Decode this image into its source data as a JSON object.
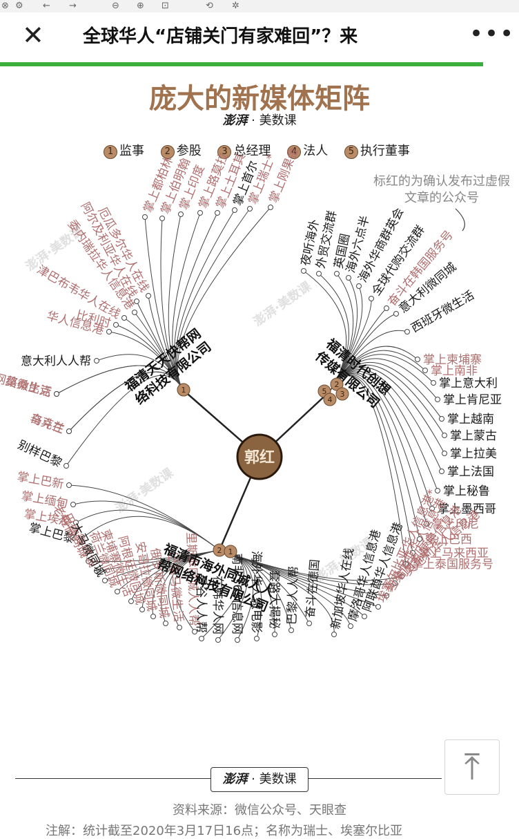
{
  "header": {
    "title": "全球华人“店铺关门有家难回”？来"
  },
  "infographic": {
    "title": "庞大的新媒体矩阵",
    "brand": "美数课",
    "brand_logo": "澎湃",
    "legend": [
      {
        "num": "1",
        "label": "监事"
      },
      {
        "num": "2",
        "label": "参股"
      },
      {
        "num": "3",
        "label": "总经理"
      },
      {
        "num": "4",
        "label": "法人"
      },
      {
        "num": "5",
        "label": "执行董事"
      }
    ],
    "note_red": "标红的为确认发布过虚假文章的公众号",
    "center": "郭红",
    "colors": {
      "red_label": "#b06f6f",
      "black_label": "#1a1a1a",
      "accent": "#b98b66",
      "title": "#a0724e"
    },
    "companies": [
      {
        "name": "福清天天快帮网络科技有限公司",
        "roles": [
          "1",
          "1"
        ]
      },
      {
        "name": "福清时代创想传媒有限公司",
        "roles": [
          "5",
          "2",
          "4",
          "3"
        ]
      },
      {
        "name": "福清市海外同城人人帮网络科技有限公司",
        "roles": [
          "2",
          "1"
        ]
      }
    ],
    "nodes": [
      {
        "text": "掌上都柏林",
        "red": true
      },
      {
        "text": "掌上伯明翰",
        "red": true
      },
      {
        "text": "掌上印度",
        "red": true
      },
      {
        "text": "掌上路莫拉",
        "red": true
      },
      {
        "text": "掌上土耳其",
        "red": true
      },
      {
        "text": "掌上首尔",
        "red": false
      },
      {
        "text": "掌上瑞士*",
        "red": true
      },
      {
        "text": "掌上刚果金",
        "red": true
      },
      {
        "text": "厄瓜多尔华人在线",
        "red": true
      },
      {
        "text": "阿尔及利亚华人在线",
        "red": true
      },
      {
        "text": "委内瑞拉华人信息港",
        "red": true
      },
      {
        "text": "津巴布韦华人在线",
        "red": true
      },
      {
        "text": "比利时",
        "red": true
      },
      {
        "text": "华人信息港",
        "red": true
      },
      {
        "text": "意大利人人帮",
        "red": false
      },
      {
        "text": "莫桑比克",
        "red": true
      },
      {
        "text": "网络微生活",
        "red": true
      },
      {
        "text": "奋斗在",
        "red": true
      },
      {
        "text": "乌克兰",
        "red": true
      },
      {
        "text": "别样巴黎",
        "red": false
      },
      {
        "text": "夜听海外",
        "red": false
      },
      {
        "text": "外贸交流群",
        "red": false
      },
      {
        "text": "英国圈",
        "red": false
      },
      {
        "text": "海外六点半",
        "red": false
      },
      {
        "text": "海外华商群英会",
        "red": false
      },
      {
        "text": "全球代购交流群",
        "red": false
      },
      {
        "text": "奋斗在韩国服务号",
        "red": true
      },
      {
        "text": "意大利微同城",
        "red": false
      },
      {
        "text": "西班牙微生活",
        "red": false
      },
      {
        "text": "掌上柬埔寨",
        "red": true
      },
      {
        "text": "掌上南非",
        "red": true
      },
      {
        "text": "掌上意大利",
        "red": false
      },
      {
        "text": "掌上肯尼亚",
        "red": false
      },
      {
        "text": "掌上越南",
        "red": false
      },
      {
        "text": "掌上蒙古",
        "red": false
      },
      {
        "text": "掌上拉美",
        "red": false
      },
      {
        "text": "掌上法国",
        "red": false
      },
      {
        "text": "掌上秘鲁",
        "red": false
      },
      {
        "text": "掌上墨西哥",
        "red": false
      },
      {
        "text": "掌上印尼",
        "red": true
      },
      {
        "text": "掌上巴西",
        "red": true
      },
      {
        "text": "掌上马来西亚",
        "red": true
      },
      {
        "text": "掌上泰国服务号",
        "red": true
      },
      {
        "text": "掌上巴新",
        "red": true
      },
      {
        "text": "掌上缅甸",
        "red": true
      },
      {
        "text": "掌上埃及",
        "red": true
      },
      {
        "text": "掌上巴黎",
        "red": false
      },
      {
        "text": "老挝微同城",
        "red": true
      },
      {
        "text": "巴西微同城",
        "red": true
      },
      {
        "text": "大马微同城",
        "red": false
      },
      {
        "text": "荷兰微同城",
        "red": true
      },
      {
        "text": "柬埔寨微生活",
        "red": true
      },
      {
        "text": "阿根廷微同城",
        "red": true
      },
      {
        "text": "安哥拉微同城",
        "red": true
      },
      {
        "text": "俄罗斯微同城",
        "red": true
      },
      {
        "text": "巴拿马微生活",
        "red": true
      },
      {
        "text": "里斯本同城人人帮",
        "red": true
      },
      {
        "text": "曼谷人人帮",
        "red": false
      },
      {
        "text": "在韩华人网",
        "red": false
      },
      {
        "text": "南非365信息网",
        "red": false
      },
      {
        "text": "海外华人微电影",
        "red": false
      },
      {
        "text": "套路大揭秘",
        "red": false
      },
      {
        "text": "巴黎人人帮",
        "red": false
      },
      {
        "text": "奋斗在德国",
        "red": false
      },
      {
        "text": "新加坡华人在线",
        "red": false
      },
      {
        "text": "摩洛哥华人信息港",
        "red": false
      },
      {
        "text": "阿联酋华人信息港",
        "red": false
      },
      {
        "text": "埃塞尔比亚华人信息港*",
        "red": true
      },
      {
        "text": "坦桑尼亚华人信息港",
        "red": true
      },
      {
        "text": "匈牙利便民信息港",
        "red": true
      },
      {
        "text": "奥地利华人信息港",
        "red": true
      }
    ],
    "source": "资料来源：微信公众号、天眼查",
    "note": "注解：统计截至2020年3月17日16点；名称为瑞士、埃塞尔比亚"
  }
}
